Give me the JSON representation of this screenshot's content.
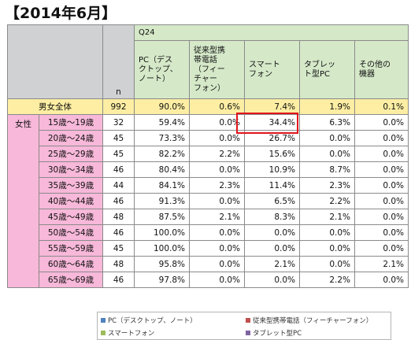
{
  "title": "【2014年6月】",
  "table": {
    "question": "Q24",
    "n_label": "n",
    "columns": [
      "PC（デスクトップ、ノート）",
      "従来型携帯電話（フィーチャーフォン）",
      "スマートフォン",
      "タブレット型PC",
      "その他の機器"
    ],
    "column_lines": [
      [
        "PC（デス",
        "クトップ、",
        "ノート）"
      ],
      [
        "従来型携",
        "帯電話",
        "（フィー",
        "チャー",
        "フォン）"
      ],
      [
        "スマート",
        "フォン"
      ],
      [
        "タブレッ",
        "ト型PC"
      ],
      [
        "その他の",
        "機器"
      ]
    ],
    "total_row": {
      "label": "男女全体",
      "n": "992",
      "values": [
        "90.0%",
        "0.6%",
        "7.4%",
        "1.9%",
        "0.1%"
      ]
    },
    "group_label": "女性",
    "rows": [
      {
        "age": "15歳～19歳",
        "n": "32",
        "values": [
          "59.4%",
          "0.0%",
          "34.4%",
          "6.3%",
          "0.0%"
        ]
      },
      {
        "age": "20歳～24歳",
        "n": "45",
        "values": [
          "73.3%",
          "0.0%",
          "26.7%",
          "0.0%",
          "0.0%"
        ]
      },
      {
        "age": "25歳～29歳",
        "n": "45",
        "values": [
          "82.2%",
          "2.2%",
          "15.6%",
          "0.0%",
          "0.0%"
        ]
      },
      {
        "age": "30歳～34歳",
        "n": "46",
        "values": [
          "80.4%",
          "0.0%",
          "10.9%",
          "8.7%",
          "0.0%"
        ]
      },
      {
        "age": "35歳～39歳",
        "n": "44",
        "values": [
          "84.1%",
          "2.3%",
          "11.4%",
          "2.3%",
          "0.0%"
        ]
      },
      {
        "age": "40歳～44歳",
        "n": "46",
        "values": [
          "91.3%",
          "0.0%",
          "6.5%",
          "2.2%",
          "0.0%"
        ]
      },
      {
        "age": "45歳～49歳",
        "n": "48",
        "values": [
          "87.5%",
          "2.1%",
          "8.3%",
          "2.1%",
          "0.0%"
        ]
      },
      {
        "age": "50歳～54歳",
        "n": "46",
        "values": [
          "100.0%",
          "0.0%",
          "0.0%",
          "0.0%",
          "0.0%"
        ]
      },
      {
        "age": "55歳～59歳",
        "n": "45",
        "values": [
          "100.0%",
          "0.0%",
          "0.0%",
          "0.0%",
          "0.0%"
        ]
      },
      {
        "age": "60歳～64歳",
        "n": "48",
        "values": [
          "95.8%",
          "0.0%",
          "2.1%",
          "0.0%",
          "2.1%"
        ]
      },
      {
        "age": "65歳～69歳",
        "n": "46",
        "values": [
          "97.8%",
          "0.0%",
          "0.0%",
          "2.2%",
          "0.0%"
        ]
      }
    ],
    "highlighted_cell": "34.4%"
  },
  "legend": [
    {
      "label": "PC（デスクトップ、ノート）",
      "color": "#4f81bd"
    },
    {
      "label": "従来型携帯電話（フィーチャーフォン）",
      "color": "#c0504d"
    },
    {
      "label": "スマートフォン",
      "color": "#9bbb59"
    },
    {
      "label": "タブレット型PC",
      "color": "#8064a2"
    }
  ],
  "colors": {
    "header_green": "#d5e9c9",
    "header_grey": "#cfd1d3",
    "total_yellow": "#fdeea3",
    "group_pink": "#f7b8d9",
    "highlight_red": "#e0141a"
  }
}
